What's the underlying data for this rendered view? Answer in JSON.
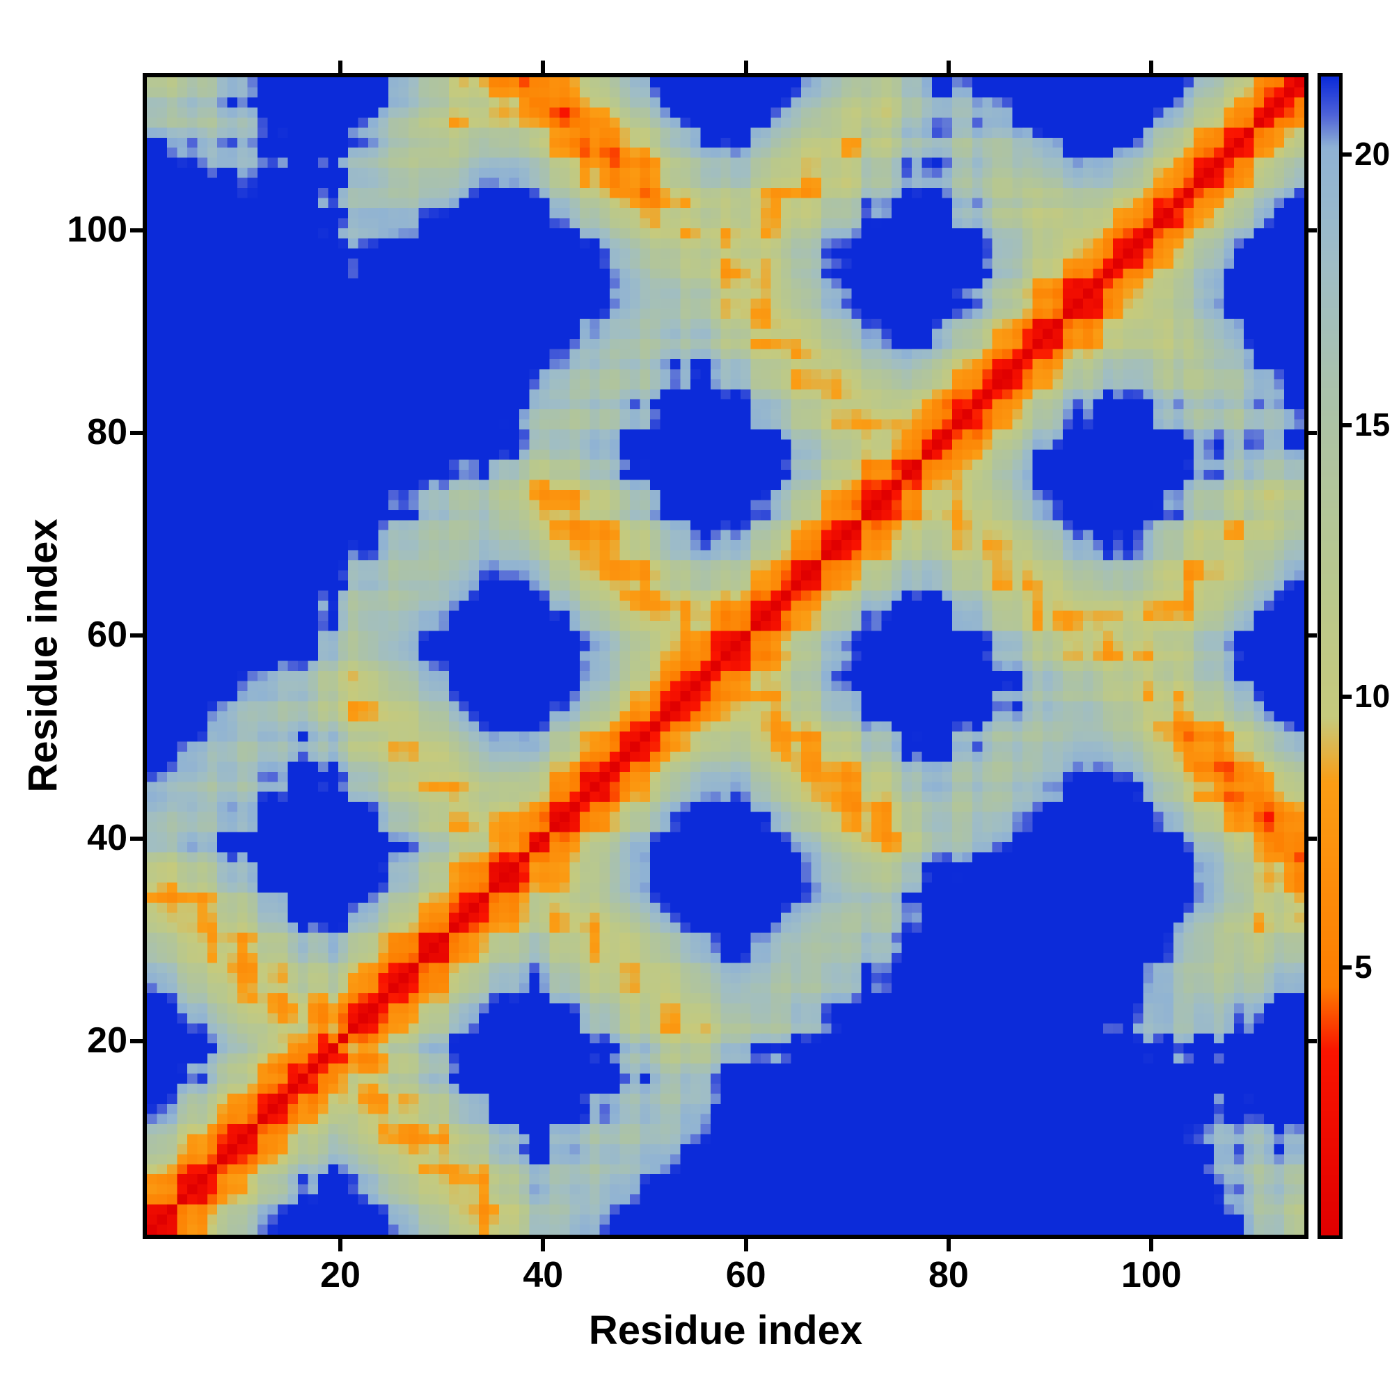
{
  "colors": {
    "background": "#ffffff",
    "frame": "#000000",
    "text": "#000000"
  },
  "chart_data": {
    "type": "heatmap",
    "title": "",
    "xlabel": "Residue index",
    "ylabel": "Residue index",
    "n_residues": 115,
    "x_range": [
      1,
      115
    ],
    "y_range": [
      1,
      115
    ],
    "x_ticks": [
      20,
      40,
      60,
      80,
      100
    ],
    "y_ticks": [
      20,
      40,
      60,
      80,
      100
    ],
    "vmin": 0,
    "vmax": 21.5,
    "colorbar_ticks": [
      5,
      10,
      15,
      20
    ],
    "legend_position": "right-colorbar",
    "grid": false,
    "colormap": [
      [
        0,
        "#e00000"
      ],
      [
        3.4,
        "#fa1400"
      ],
      [
        4.6,
        "#fd7d00"
      ],
      [
        8.4,
        "#fb9d14"
      ],
      [
        9.6,
        "#c6ca7c"
      ],
      [
        12,
        "#b9c88d"
      ],
      [
        15,
        "#adc3a4"
      ],
      [
        18,
        "#9fbdc6"
      ],
      [
        20.2,
        "#8fb2d4"
      ],
      [
        20.8,
        "#4f63d8"
      ],
      [
        21.5,
        "#0c2bd9"
      ]
    ],
    "matrix_spec": {
      "description": "Symmetric pairwise residue-residue distance matrix, capped at vmax; generated from a folded 6-segment chain (piecewise-linear waypoints + helical wiggle + deterministic speckle noise).",
      "waypoints": [
        [
          1,
          0,
          0,
          0
        ],
        [
          16,
          28,
          0,
          0
        ],
        [
          19,
          31,
          4,
          1
        ],
        [
          20,
          30,
          8,
          0
        ],
        [
          35,
          2,
          8,
          0
        ],
        [
          38,
          -1,
          12,
          3
        ],
        [
          39,
          0,
          15,
          6
        ],
        [
          54,
          28,
          15,
          6
        ],
        [
          57,
          31,
          19,
          5
        ],
        [
          59,
          30,
          23,
          4
        ],
        [
          74,
          2,
          23,
          4
        ],
        [
          77,
          -1,
          27,
          6
        ],
        [
          78,
          0,
          31,
          8
        ],
        [
          93,
          28,
          31,
          8
        ],
        [
          96,
          31,
          28,
          11
        ],
        [
          98,
          30,
          24,
          14
        ],
        [
          115,
          0,
          10,
          8
        ]
      ],
      "wiggle_amp": 1.05,
      "wiggle_freq": 1.72,
      "noise_amp": 0.8,
      "distance_cap": 21.5
    }
  }
}
